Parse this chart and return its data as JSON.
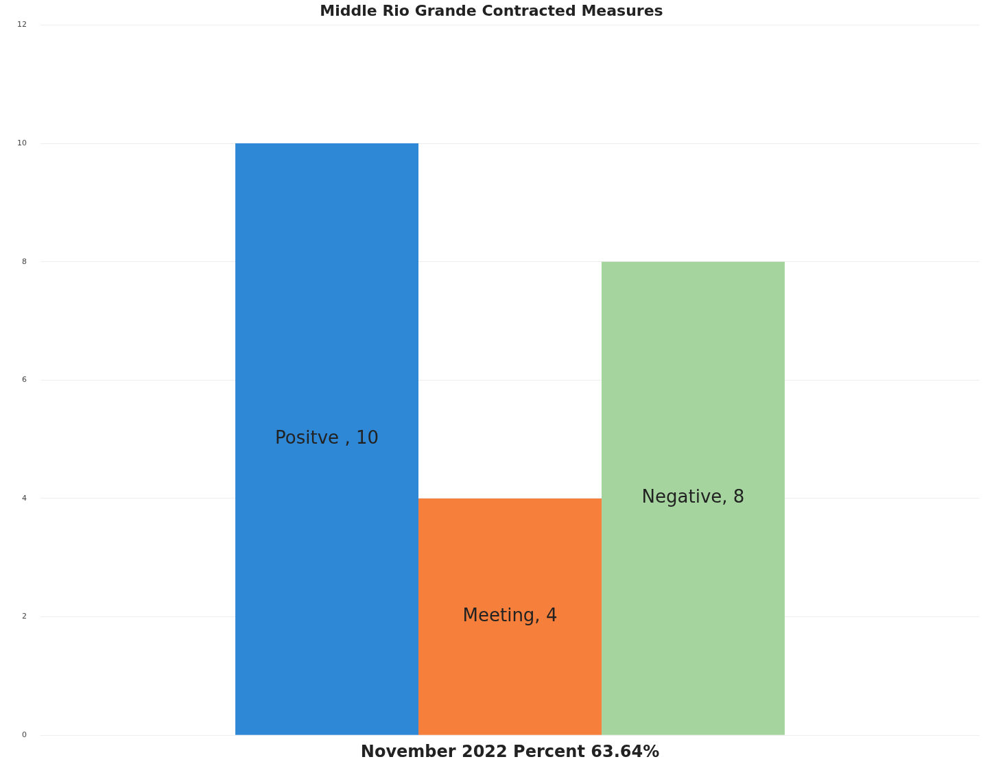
{
  "chart_data": {
    "type": "bar",
    "title": "Middle Rio Grande Contracted Measures",
    "categories": [
      "November 2022 Percent 63.64%"
    ],
    "series": [
      {
        "color": "#2e88d6",
        "values": [
          10
        ],
        "value_labels": [
          "Positve , 10"
        ]
      },
      {
        "color": "#f77f3c",
        "values": [
          4
        ],
        "value_labels": [
          "Meeting, 4"
        ]
      },
      {
        "color": "#a5d49e",
        "values": [
          8
        ],
        "value_labels": [
          "Negative, 8"
        ]
      }
    ],
    "ylim": [
      0,
      12
    ],
    "yticks": [
      0,
      2,
      4,
      6,
      8,
      10,
      12
    ],
    "grid": "y",
    "legend": false
  }
}
